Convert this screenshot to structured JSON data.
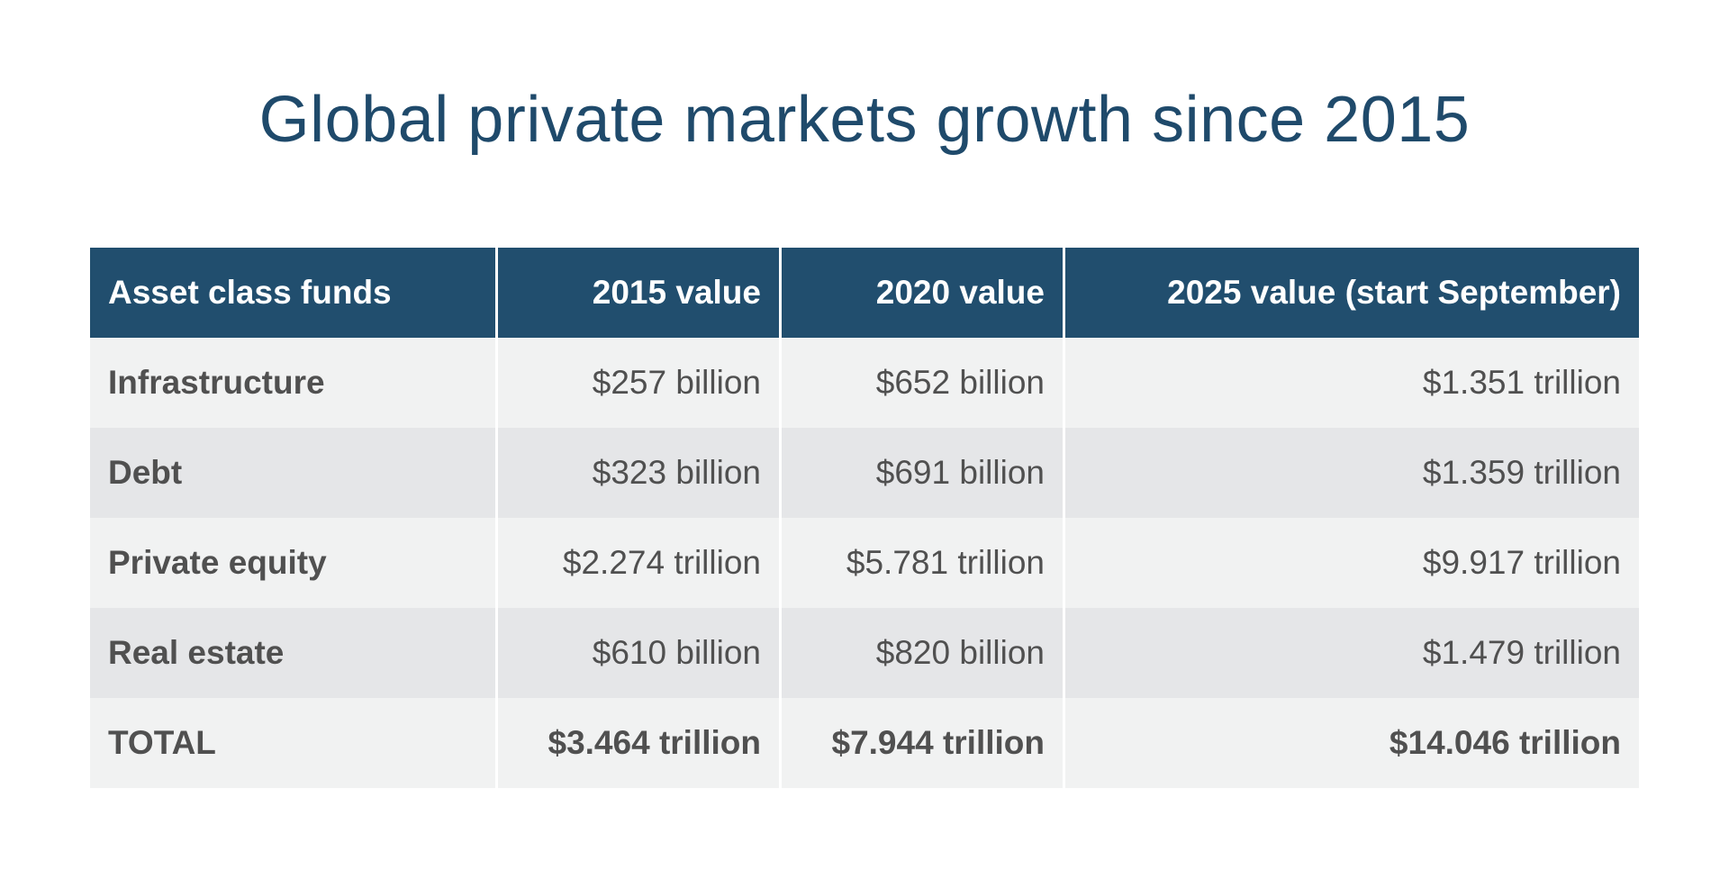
{
  "title": "Global private markets growth since 2015",
  "colors": {
    "title": "#1f4a6b",
    "header_bg": "#214e6e",
    "row_light": "#f1f2f2",
    "row_dark": "#e5e6e8",
    "text": "#505050"
  },
  "chart_data": {
    "type": "table",
    "title": "Global private markets growth since 2015",
    "columns": [
      "Asset class funds",
      "2015 value",
      "2020 value",
      "2025 value (start September)"
    ],
    "rows": [
      [
        "Infrastructure",
        "$257 billion",
        "$652 billion",
        "$1.351 trillion"
      ],
      [
        "Debt",
        "$323 billion",
        "$691 billion",
        "$1.359 trillion"
      ],
      [
        "Private equity",
        "$2.274 trillion",
        "$5.781 trillion",
        "$9.917 trillion"
      ],
      [
        "Real estate",
        "$610 billion",
        "$820 billion",
        "$1.479 trillion"
      ],
      [
        "TOTAL",
        "$3.464 trillion",
        "$7.944 trillion",
        "$14.046 trillion"
      ]
    ],
    "series": [
      {
        "name": "Infrastructure",
        "values_usd_billion": [
          257,
          652,
          1351
        ]
      },
      {
        "name": "Debt",
        "values_usd_billion": [
          323,
          691,
          1359
        ]
      },
      {
        "name": "Private equity",
        "values_usd_billion": [
          2274,
          5781,
          9917
        ]
      },
      {
        "name": "Real estate",
        "values_usd_billion": [
          610,
          820,
          1479
        ]
      },
      {
        "name": "TOTAL",
        "values_usd_billion": [
          3464,
          7944,
          14046
        ]
      }
    ],
    "categories": [
      "2015",
      "2020",
      "2025 (start September)"
    ]
  }
}
